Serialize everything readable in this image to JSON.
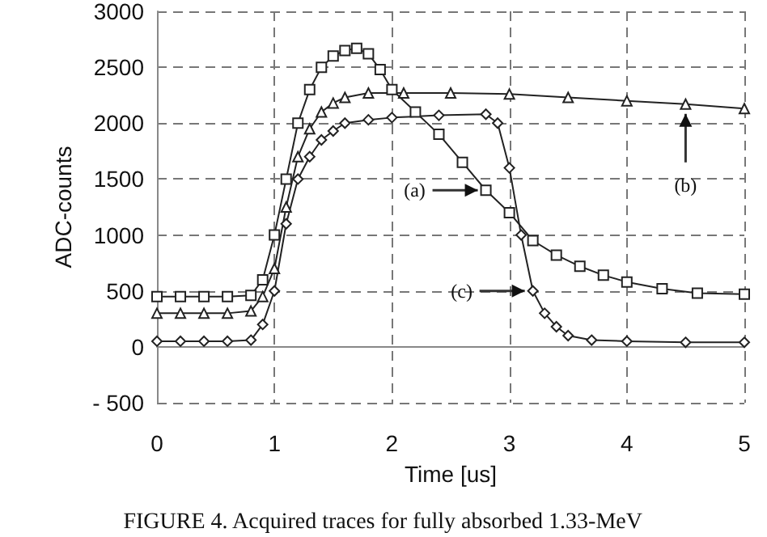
{
  "chart_data": {
    "type": "line",
    "xlabel": "Time [us]",
    "ylabel": "ADC-counts",
    "xlim": [
      0,
      5
    ],
    "xticks": [
      0,
      1,
      2,
      3,
      4,
      5
    ],
    "ylim": [
      -500,
      3000
    ],
    "yticks": [
      -500,
      0,
      500,
      1000,
      1500,
      2000,
      2500,
      3000
    ],
    "grid": true,
    "line_style": "solid",
    "annotations": [
      "FIGURE 4. Acquired traces for fully absorbed 1.33-MeV"
    ],
    "series": [
      {
        "name": "(a)",
        "color": "#222222",
        "marker": "square",
        "x": [
          0,
          0.2,
          0.4,
          0.6,
          0.8,
          0.9,
          1,
          1.1,
          1.2,
          1.3,
          1.4,
          1.5,
          1.6,
          1.7,
          1.8,
          1.9,
          2,
          2.2,
          2.4,
          2.6,
          2.8,
          3,
          3.2,
          3.4,
          3.6,
          3.8,
          4,
          4.3,
          4.6,
          5
        ],
        "values": [
          450,
          450,
          450,
          450,
          460,
          600,
          1000,
          1500,
          2000,
          2300,
          2500,
          2600,
          2650,
          2670,
          2620,
          2480,
          2300,
          2100,
          1900,
          1650,
          1400,
          1200,
          950,
          820,
          720,
          640,
          580,
          520,
          480,
          470
        ]
      },
      {
        "name": "(b)",
        "color": "#222222",
        "marker": "triangle",
        "x": [
          0,
          0.2,
          0.4,
          0.6,
          0.8,
          0.9,
          1,
          1.1,
          1.2,
          1.3,
          1.4,
          1.5,
          1.6,
          1.8,
          2.1,
          2.5,
          3,
          3.5,
          4,
          4.5,
          5
        ],
        "values": [
          300,
          300,
          300,
          300,
          320,
          450,
          700,
          1250,
          1700,
          1950,
          2100,
          2180,
          2230,
          2270,
          2270,
          2270,
          2260,
          2230,
          2200,
          2170,
          2130
        ]
      },
      {
        "name": "(c)",
        "color": "#222222",
        "marker": "diamond",
        "x": [
          0,
          0.2,
          0.4,
          0.6,
          0.8,
          0.9,
          1,
          1.1,
          1.2,
          1.3,
          1.4,
          1.5,
          1.6,
          1.8,
          2,
          2.4,
          2.8,
          2.9,
          3,
          3.1,
          3.2,
          3.3,
          3.4,
          3.5,
          3.7,
          4,
          4.5,
          5
        ],
        "values": [
          50,
          50,
          50,
          50,
          60,
          200,
          500,
          1100,
          1500,
          1700,
          1850,
          1930,
          2000,
          2030,
          2050,
          2070,
          2080,
          2000,
          1600,
          1000,
          500,
          300,
          180,
          100,
          60,
          50,
          40,
          40
        ]
      }
    ]
  }
}
